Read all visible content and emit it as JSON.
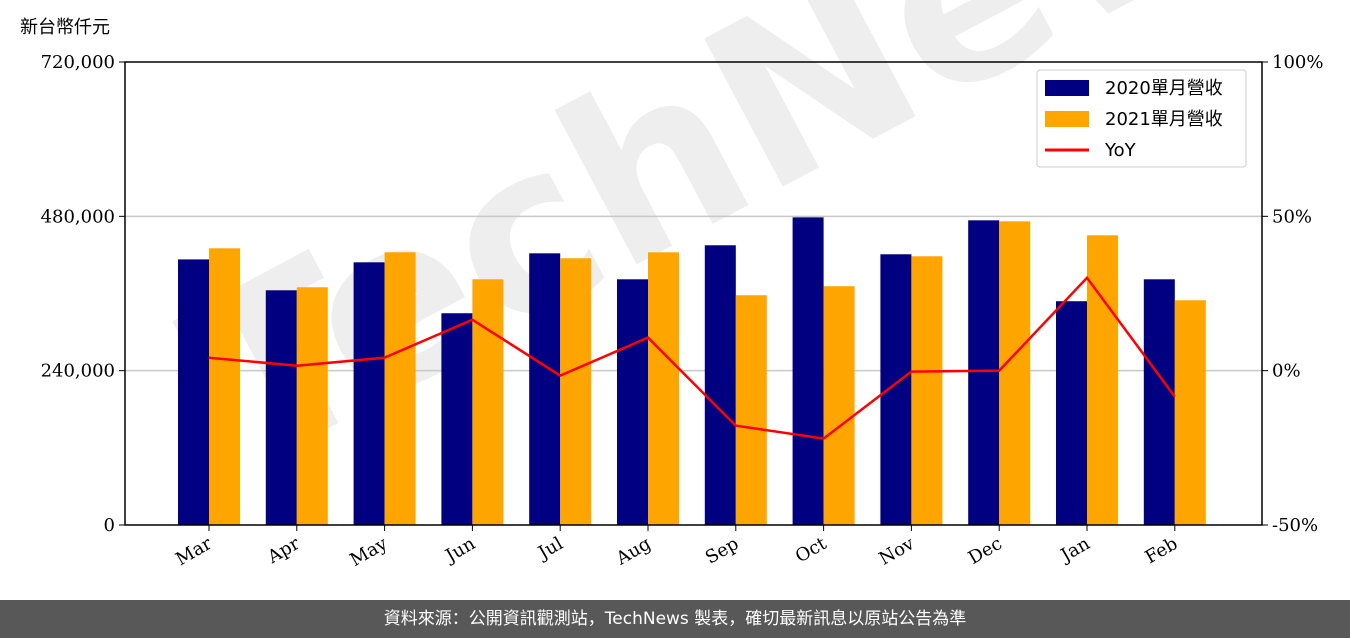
{
  "chart_data": {
    "type": "bar",
    "y_label": "新台幣仟元",
    "watermark": "TechNews",
    "categories": [
      "Mar",
      "Apr",
      "May",
      "Jun",
      "Jul",
      "Aug",
      "Sep",
      "Oct",
      "Nov",
      "Dec",
      "Jan",
      "Feb"
    ],
    "series": [
      {
        "name": "2020單月營收",
        "color": "#000080",
        "values": [
          413000,
          365000,
          408500,
          329300,
          422500,
          382100,
          435000,
          478400,
          421000,
          473800,
          348000,
          382100
        ]
      },
      {
        "name": "2021單月營收",
        "color": "#ffa500",
        "values": [
          430300,
          369700,
          424100,
          382100,
          414800,
          424100,
          357300,
          371300,
          417900,
          472200,
          450500,
          349500
        ]
      },
      {
        "name": "YoY",
        "type": "line",
        "axis": "y2",
        "color": "#ff0000",
        "values": [
          4.2,
          1.6,
          4.2,
          16.5,
          -1.6,
          10.7,
          -17.8,
          -22.0,
          -0.3,
          0,
          30.1,
          -8.4
        ]
      }
    ],
    "ylim": [
      0,
      720000
    ],
    "yticks": [
      0,
      {
        "value": 240000,
        "label": "240,000"
      },
      {
        "value": 480000,
        "label": "480,000"
      },
      {
        "value": 720000,
        "label": "720,000"
      }
    ],
    "y2lim": [
      -50,
      100
    ],
    "y2ticks": [
      {
        "value": -50,
        "label": "-50%"
      },
      {
        "value": 0,
        "label": "0%"
      },
      {
        "value": 50,
        "label": "50%"
      },
      {
        "value": 100,
        "label": "100%"
      }
    ],
    "grid": true,
    "legend": "upper right",
    "footer": "資料來源：公開資訊觀測站，TechNews 製表，確切最新訊息以原站公告為準"
  }
}
